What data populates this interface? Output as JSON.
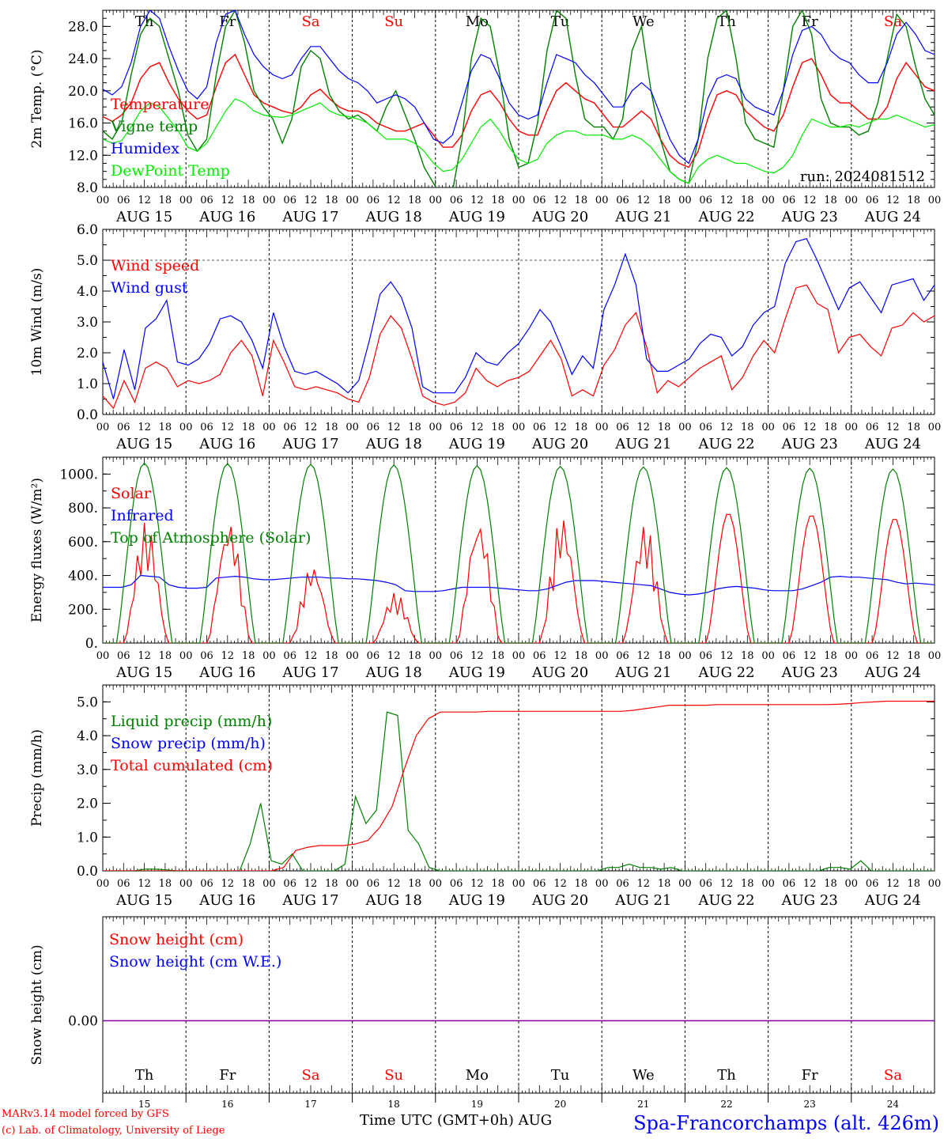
{
  "run_label": "run: 2024081512",
  "footer": {
    "credit_line1": "MARv3.14 model forced by GFS",
    "credit_line2": "(c) Lab. of Climatology, University of Liege",
    "xlabel": "Time UTC (GMT+0h) AUG",
    "station": "Spa-Francorchamps (alt. 426m)"
  },
  "days": [
    {
      "abbr": "Th",
      "date": "AUG 15",
      "num": "15",
      "weekend": false
    },
    {
      "abbr": "Fr",
      "date": "AUG 16",
      "num": "16",
      "weekend": false
    },
    {
      "abbr": "Sa",
      "date": "AUG 17",
      "num": "17",
      "weekend": true
    },
    {
      "abbr": "Su",
      "date": "AUG 18",
      "num": "18",
      "weekend": true
    },
    {
      "abbr": "Mo",
      "date": "AUG 19",
      "num": "19",
      "weekend": false
    },
    {
      "abbr": "Tu",
      "date": "AUG 20",
      "num": "20",
      "weekend": false
    },
    {
      "abbr": "We",
      "date": "AUG 21",
      "num": "21",
      "weekend": false
    },
    {
      "abbr": "Th",
      "date": "AUG 22",
      "num": "22",
      "weekend": false
    },
    {
      "abbr": "Fr",
      "date": "AUG 23",
      "num": "23",
      "weekend": false
    },
    {
      "abbr": "Sa",
      "date": "AUG 24",
      "num": "24",
      "weekend": true
    }
  ],
  "hour_labels": [
    "00",
    "06",
    "12",
    "18"
  ],
  "colors": {
    "red": "#ff0000",
    "blue": "#0000ff",
    "green": "#008000",
    "lightgreen": "#00ee00",
    "purple": "#8000a0",
    "weekend": "#ff0000"
  },
  "chart_data": [
    {
      "id": "temp",
      "type": "line",
      "ylabel": "2m Temp. (°C)",
      "ylim": [
        8,
        30
      ],
      "yticks": [
        8,
        12,
        16,
        20,
        24,
        28
      ],
      "ytick_labels": [
        "8.0",
        "12.0",
        "16.0",
        "20.0",
        "24.0",
        "28.0"
      ],
      "minor_step": 1,
      "x": "hours since AUG 15 00 UTC, every 3h",
      "series": [
        {
          "name": "Temperature",
          "color": "#ff0000",
          "values": [
            16.8,
            16.2,
            17.0,
            18.5,
            21.5,
            23.0,
            23.5,
            21.0,
            19.0,
            17.5,
            16.5,
            17.0,
            20.5,
            23.5,
            24.5,
            22.0,
            19.5,
            18.5,
            18.0,
            17.5,
            17.2,
            18.0,
            19.5,
            20.2,
            19.0,
            18.0,
            17.5,
            17.5,
            17.0,
            16.0,
            15.5,
            15.0,
            15.0,
            15.5,
            16.0,
            14.5,
            13.0,
            13.0,
            14.5,
            17.5,
            19.5,
            20.0,
            18.5,
            16.5,
            15.0,
            14.5,
            14.5,
            17.5,
            20.0,
            21.0,
            20.0,
            19.0,
            18.5,
            17.0,
            15.5,
            15.5,
            16.5,
            17.5,
            16.5,
            14.0,
            12.0,
            11.0,
            10.5,
            12.5,
            16.5,
            19.5,
            20.0,
            19.5,
            17.5,
            16.5,
            15.5,
            15.0,
            17.0,
            20.5,
            23.5,
            24.0,
            22.0,
            19.5,
            18.5,
            18.5,
            17.5,
            16.5,
            16.5,
            18.0,
            21.5,
            23.5,
            22.0,
            20.5,
            20.0
          ]
        },
        {
          "name": "Vigne temp",
          "color": "#008000",
          "values": [
            15.0,
            14.0,
            16.0,
            22.0,
            27.0,
            29.0,
            28.0,
            24.0,
            20.0,
            14.5,
            12.5,
            14.0,
            22.0,
            28.0,
            30.0,
            26.0,
            20.0,
            18.0,
            16.5,
            13.5,
            16.5,
            23.0,
            25.0,
            24.0,
            19.5,
            17.5,
            16.5,
            17.0,
            16.0,
            15.0,
            18.0,
            20.0,
            17.0,
            14.0,
            10.5,
            8.5,
            6.5,
            7.5,
            14.0,
            24.0,
            29.0,
            28.0,
            22.0,
            14.0,
            10.5,
            11.0,
            16.0,
            25.0,
            30.0,
            29.0,
            22.0,
            16.5,
            15.5,
            15.5,
            14.0,
            16.5,
            25.0,
            28.0,
            20.0,
            14.0,
            10.0,
            9.0,
            8.5,
            14.0,
            24.0,
            29.0,
            30.0,
            24.0,
            16.0,
            14.0,
            13.5,
            13.0,
            20.0,
            28.0,
            30.0,
            27.0,
            19.0,
            16.0,
            15.5,
            15.5,
            14.5,
            15.0,
            18.5,
            24.0,
            29.5,
            28.0,
            23.0,
            19.0,
            17.0
          ]
        },
        {
          "name": "Humidex",
          "color": "#0000ff",
          "values": [
            20.2,
            19.5,
            20.5,
            23.5,
            28.0,
            30.0,
            29.0,
            25.5,
            22.5,
            20.0,
            19.0,
            20.5,
            26.0,
            29.5,
            30.0,
            27.0,
            24.5,
            23.0,
            22.0,
            21.5,
            22.0,
            24.0,
            25.5,
            25.5,
            24.0,
            22.5,
            21.5,
            21.0,
            20.0,
            18.5,
            19.0,
            19.5,
            19.0,
            18.0,
            16.0,
            14.0,
            13.5,
            14.5,
            18.5,
            22.5,
            24.5,
            24.0,
            21.5,
            18.5,
            17.0,
            16.5,
            17.0,
            21.0,
            24.5,
            24.0,
            23.5,
            22.0,
            21.0,
            19.5,
            18.0,
            18.0,
            20.0,
            21.0,
            20.0,
            17.0,
            14.0,
            12.0,
            11.0,
            14.0,
            19.0,
            21.5,
            22.0,
            21.5,
            19.0,
            18.0,
            17.5,
            17.0,
            20.0,
            24.5,
            27.5,
            28.0,
            27.0,
            25.0,
            24.0,
            23.5,
            22.0,
            21.0,
            21.0,
            23.5,
            27.0,
            28.5,
            27.0,
            25.0,
            24.5
          ]
        },
        {
          "name": "DewPoint Temp",
          "color": "#00ee00",
          "values": [
            14.0,
            13.5,
            13.8,
            15.5,
            17.5,
            18.5,
            18.0,
            16.5,
            15.0,
            13.0,
            12.5,
            13.5,
            15.5,
            17.5,
            19.0,
            18.5,
            17.5,
            17.0,
            16.8,
            16.7,
            17.0,
            17.5,
            18.0,
            18.5,
            17.5,
            17.0,
            16.8,
            16.5,
            16.0,
            15.0,
            14.0,
            14.0,
            14.0,
            13.5,
            12.5,
            11.0,
            10.0,
            10.2,
            11.5,
            13.5,
            15.5,
            16.5,
            15.0,
            13.0,
            11.5,
            11.0,
            11.5,
            13.5,
            14.5,
            15.0,
            15.0,
            14.5,
            14.5,
            14.5,
            14.0,
            14.0,
            14.5,
            14.0,
            13.0,
            11.5,
            10.0,
            9.0,
            8.5,
            10.5,
            11.5,
            12.0,
            11.5,
            11.0,
            11.0,
            10.5,
            10.0,
            9.8,
            10.5,
            12.0,
            14.5,
            16.5,
            16.0,
            15.5,
            15.5,
            15.8,
            15.5,
            16.0,
            16.5,
            16.5,
            17.0,
            16.5,
            16.0,
            15.5,
            15.8
          ]
        }
      ]
    },
    {
      "id": "wind",
      "type": "line",
      "ylabel": "10m Wind (m/s)",
      "ylim": [
        0,
        6
      ],
      "yticks": [
        0,
        1,
        2,
        3,
        4,
        5,
        6
      ],
      "ytick_labels": [
        "0.0",
        "1.0",
        "2.0",
        "3.0",
        "4.0",
        "5.0",
        "6.0"
      ],
      "minor_step": 0.5,
      "hline": 5,
      "series": [
        {
          "name": "Wind speed",
          "color": "#ff0000",
          "values": [
            0.6,
            0.2,
            1.1,
            0.4,
            1.5,
            1.7,
            1.5,
            0.9,
            1.1,
            1.0,
            1.1,
            1.3,
            2.0,
            2.4,
            1.9,
            0.6,
            2.4,
            1.7,
            0.9,
            0.8,
            0.9,
            0.8,
            0.7,
            0.5,
            0.4,
            1.2,
            2.6,
            3.2,
            2.8,
            1.8,
            0.6,
            0.4,
            0.3,
            0.4,
            0.7,
            1.5,
            1.1,
            0.9,
            1.1,
            1.2,
            1.4,
            1.9,
            2.4,
            1.8,
            0.6,
            0.8,
            0.6,
            1.6,
            2.1,
            2.9,
            3.3,
            2.2,
            0.7,
            1.1,
            0.9,
            1.2,
            1.5,
            1.7,
            1.9,
            0.8,
            1.2,
            1.9,
            2.4,
            2.0,
            3.1,
            4.1,
            4.2,
            3.6,
            3.4,
            2.0,
            2.5,
            2.6,
            2.2,
            1.9,
            2.8,
            2.9,
            3.3,
            3.0,
            3.2
          ]
        },
        {
          "name": "Wind gust",
          "color": "#0000ff",
          "values": [
            1.7,
            0.5,
            2.1,
            0.8,
            2.8,
            3.1,
            3.7,
            1.7,
            1.6,
            1.8,
            2.3,
            3.1,
            3.2,
            3.0,
            2.4,
            1.5,
            3.3,
            2.2,
            1.4,
            1.3,
            1.4,
            1.2,
            1.0,
            0.7,
            1.1,
            2.4,
            3.9,
            4.3,
            3.8,
            2.8,
            0.9,
            0.7,
            0.7,
            0.7,
            1.2,
            2.0,
            1.7,
            1.6,
            2.0,
            2.3,
            2.8,
            3.4,
            3.0,
            2.2,
            1.3,
            1.9,
            1.5,
            3.4,
            4.2,
            5.2,
            4.2,
            1.8,
            1.4,
            1.4,
            1.6,
            1.8,
            2.3,
            2.6,
            2.5,
            1.9,
            2.2,
            2.9,
            3.3,
            3.5,
            4.9,
            5.6,
            5.7,
            5.0,
            4.2,
            3.4,
            4.1,
            4.3,
            3.8,
            3.3,
            4.2,
            4.3,
            4.4,
            3.7,
            4.2
          ]
        }
      ]
    },
    {
      "id": "energy",
      "type": "line",
      "ylabel": "Energy fluxes (W/m²)",
      "ylim": [
        0,
        1100
      ],
      "yticks": [
        0,
        200,
        400,
        600,
        800,
        1000
      ],
      "ytick_labels": [
        "0.",
        "200.",
        "400.",
        "600.",
        "800.",
        "1000."
      ],
      "minor_step": 100,
      "series": [
        {
          "name": "Solar",
          "peaks": [
            720,
            730,
            470,
            300,
            740,
            760,
            710,
            770,
            760,
            740
          ],
          "color": "#ff0000"
        },
        {
          "name": "Infrared",
          "color": "#0000ff",
          "values": [
            330,
            330,
            330,
            345,
            400,
            395,
            390,
            345,
            330,
            325,
            325,
            330,
            385,
            390,
            395,
            390,
            380,
            375,
            375,
            380,
            385,
            390,
            390,
            390,
            385,
            385,
            380,
            380,
            375,
            370,
            360,
            345,
            310,
            305,
            305,
            305,
            310,
            320,
            330,
            330,
            330,
            330,
            325,
            320,
            315,
            310,
            310,
            320,
            340,
            360,
            370,
            370,
            370,
            365,
            360,
            355,
            350,
            345,
            340,
            320,
            300,
            290,
            285,
            290,
            300,
            320,
            330,
            335,
            330,
            325,
            315,
            310,
            310,
            310,
            320,
            340,
            360,
            390,
            395,
            390,
            390,
            385,
            380,
            375,
            360,
            350,
            355,
            350,
            345
          ]
        },
        {
          "name": "Top of Atmosphere (Solar)",
          "peaks": [
            1065,
            1062,
            1058,
            1054,
            1050,
            1046,
            1042,
            1038,
            1034,
            1030
          ],
          "color": "#008000"
        }
      ]
    },
    {
      "id": "precip",
      "type": "line",
      "ylabel": "Precip (mm/h)",
      "ylim": [
        0,
        5.5
      ],
      "yticks": [
        0,
        1,
        2,
        3,
        4,
        5
      ],
      "ytick_labels": [
        "0.0",
        "1.0",
        "2.0",
        "3.0",
        "4.0",
        "5.0"
      ],
      "minor_step": 0.5,
      "series": [
        {
          "name": "Liquid precip (mm/h)",
          "color": "#008000",
          "values": [
            0,
            0,
            0,
            0,
            0.05,
            0.05,
            0.03,
            0,
            0,
            0,
            0,
            0,
            0,
            0,
            0.8,
            2.0,
            0.3,
            0.2,
            0.5,
            0,
            0,
            0,
            0,
            0.2,
            2.2,
            1.4,
            1.8,
            4.7,
            4.6,
            1.2,
            0.8,
            0.1,
            0,
            0,
            0,
            0,
            0,
            0,
            0,
            0,
            0,
            0,
            0,
            0,
            0,
            0,
            0,
            0,
            0.1,
            0.1,
            0.2,
            0.1,
            0.1,
            0.05,
            0.1,
            0,
            0,
            0,
            0,
            0,
            0,
            0,
            0,
            0,
            0,
            0,
            0,
            0,
            0,
            0.1,
            0.1,
            0.05,
            0.3,
            0,
            0,
            0,
            0,
            0,
            0,
            0
          ]
        },
        {
          "name": "Snow precip (mm/h)",
          "color": "#0000ff",
          "values": [
            0
          ]
        },
        {
          "name": "Total cumulated (cm)",
          "color": "#ff0000",
          "values": [
            0,
            0,
            0,
            0,
            0,
            0,
            0,
            0,
            0,
            0,
            0,
            0,
            0,
            0,
            0,
            0.1,
            0.6,
            0.7,
            0.75,
            0.75,
            0.75,
            0.8,
            0.9,
            1.3,
            1.9,
            3.0,
            4.0,
            4.5,
            4.7,
            4.7,
            4.7,
            4.7,
            4.72,
            4.72,
            4.72,
            4.72,
            4.72,
            4.72,
            4.72,
            4.72,
            4.72,
            4.72,
            4.72,
            4.72,
            4.75,
            4.8,
            4.85,
            4.9,
            4.9,
            4.9,
            4.9,
            4.92,
            4.92,
            4.92,
            4.92,
            4.92,
            4.92,
            4.92,
            4.92,
            4.92,
            4.92,
            4.93,
            4.95,
            4.98,
            5.0,
            5.02,
            5.02,
            5.02,
            5.02,
            5.02
          ]
        }
      ]
    },
    {
      "id": "snow",
      "type": "line",
      "ylabel": "Snow height (cm)",
      "yticks": [
        0
      ],
      "ytick_labels": [
        "0.00"
      ],
      "series": [
        {
          "name": "Snow height (cm)",
          "color": "#ff0000",
          "values": [
            0
          ]
        },
        {
          "name": "Snow height (cm W.E.)",
          "color": "#0000ff",
          "values": [
            0
          ]
        }
      ]
    }
  ]
}
